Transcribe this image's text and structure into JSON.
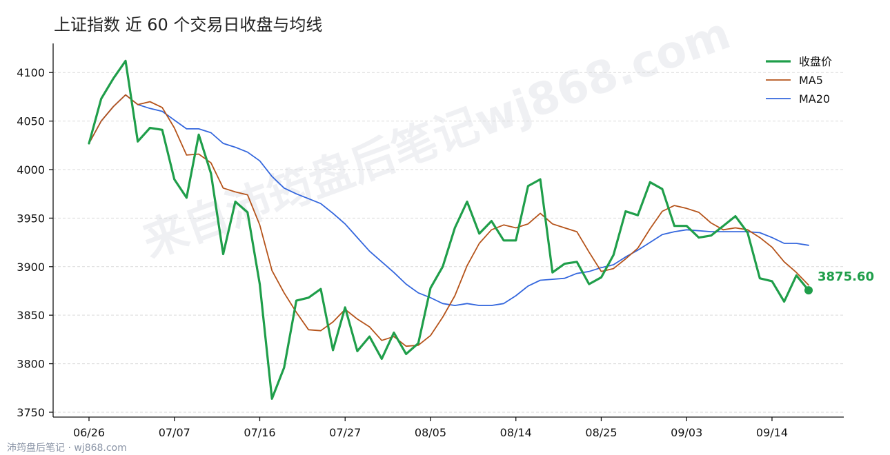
{
  "chart_data": {
    "type": "line",
    "title": "上证指数 近 60 个交易日收盘与均线",
    "xlabel": "",
    "ylabel": "",
    "ylim": [
      3745,
      4130
    ],
    "yticks": [
      3750,
      3800,
      3850,
      3900,
      3950,
      4000,
      4050,
      4100
    ],
    "x_tick_labels": [
      "06/26",
      "07/07",
      "07/16",
      "07/27",
      "08/05",
      "08/14",
      "08/25",
      "09/03",
      "09/14"
    ],
    "x_tick_index": [
      0,
      7,
      14,
      21,
      28,
      35,
      42,
      49,
      56
    ],
    "grid": true,
    "legend_position": "top-right",
    "series": [
      {
        "name": "收盘价",
        "color": "#1f9e4a",
        "values": [
          4027,
          4073,
          4094,
          4112,
          4029,
          4043,
          4041,
          3990,
          3971,
          4036,
          3996,
          3913,
          3967,
          3956,
          3882,
          3764,
          3796,
          3865,
          3868,
          3877,
          3814,
          3858,
          3813,
          3828,
          3805,
          3832,
          3810,
          3821,
          3878,
          3900,
          3940,
          3967,
          3934,
          3947,
          3927,
          3927,
          3983,
          3990,
          3894,
          3903,
          3905,
          3882,
          3889,
          3912,
          3957,
          3953,
          3987,
          3980,
          3942,
          3942,
          3930,
          3932,
          3942,
          3952,
          3935,
          3888,
          3885,
          3864,
          3891,
          3875.6
        ]
      },
      {
        "name": "MA5",
        "color": "#b5531a",
        "values": [
          4027,
          4050,
          4065,
          4077,
          4067,
          4070,
          4064,
          4043,
          4015,
          4016,
          4007,
          3981,
          3977,
          3974,
          3943,
          3896,
          3873,
          3853,
          3835,
          3834,
          3843,
          3856,
          3846,
          3838,
          3824,
          3828,
          3818,
          3819,
          3829,
          3848,
          3870,
          3901,
          3924,
          3938,
          3943,
          3940,
          3944,
          3955,
          3944,
          3940,
          3936,
          3915,
          3895,
          3898,
          3908,
          3919,
          3939,
          3957,
          3963,
          3960,
          3956,
          3945,
          3938,
          3940,
          3938,
          3930,
          3920,
          3905,
          3894,
          3881
        ]
      },
      {
        "name": "MA20",
        "color": "#3366dd",
        "values": [
          4027,
          4050,
          4065,
          4077,
          4067,
          4063,
          4060,
          4051,
          4042,
          4042,
          4038,
          4027,
          4023,
          4018,
          4009,
          3993,
          3981,
          3975,
          3970,
          3965,
          3955,
          3944,
          3930,
          3916,
          3905,
          3894,
          3882,
          3873,
          3868,
          3862,
          3860,
          3862,
          3860,
          3860,
          3862,
          3870,
          3880,
          3886,
          3887,
          3888,
          3893,
          3895,
          3899,
          3902,
          3910,
          3917,
          3925,
          3933,
          3936,
          3938,
          3937,
          3936,
          3936,
          3936,
          3936,
          3935,
          3930,
          3924,
          3924,
          3922
        ]
      }
    ],
    "last_value_label": "3875.60"
  },
  "watermark": "来自沛筠盘后笔记wj868.com",
  "source": "沛筠盘后笔记 · wj868.com"
}
